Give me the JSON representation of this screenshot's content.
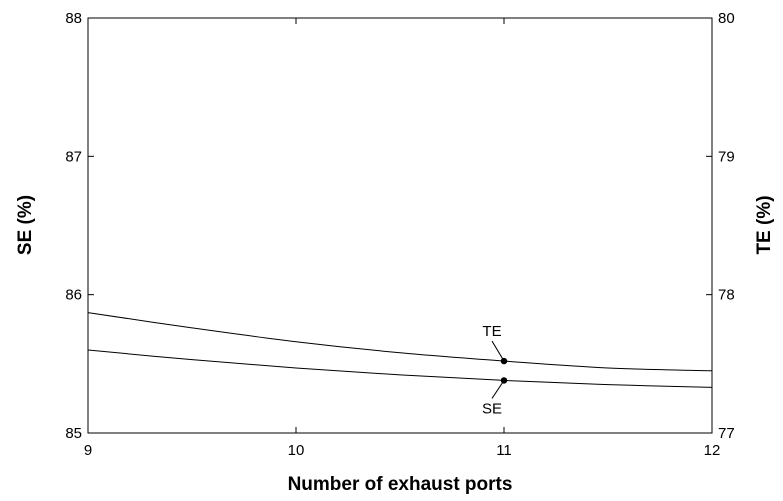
{
  "chart_data": {
    "type": "line",
    "title": "",
    "xlabel": "Number of exhaust ports",
    "ylabel_left": "SE (%)",
    "ylabel_right": "TE (%)",
    "xlim": [
      9,
      12
    ],
    "ylim_left": [
      85,
      88
    ],
    "ylim_right": [
      77,
      80
    ],
    "x_ticks": [
      9,
      10,
      11,
      12
    ],
    "y_ticks_left": [
      85,
      86,
      87,
      88
    ],
    "y_ticks_right": [
      77,
      78,
      79,
      80
    ],
    "grid": false,
    "series": [
      {
        "name": "TE",
        "axis": "right",
        "x": [
          9,
          9.5,
          10,
          10.5,
          11,
          11.5,
          12
        ],
        "values": [
          77.87,
          77.76,
          77.66,
          77.58,
          77.52,
          77.47,
          77.45
        ]
      },
      {
        "name": "SE",
        "axis": "left",
        "x": [
          9,
          9.5,
          10,
          10.5,
          11,
          11.5,
          12
        ],
        "values": [
          85.6,
          85.53,
          85.47,
          85.42,
          85.38,
          85.35,
          85.33
        ]
      }
    ],
    "annotations": [
      {
        "label": "TE",
        "series": "TE",
        "x": 11,
        "y": 77.52
      },
      {
        "label": "SE",
        "series": "SE",
        "x": 11,
        "y": 85.38
      }
    ]
  }
}
